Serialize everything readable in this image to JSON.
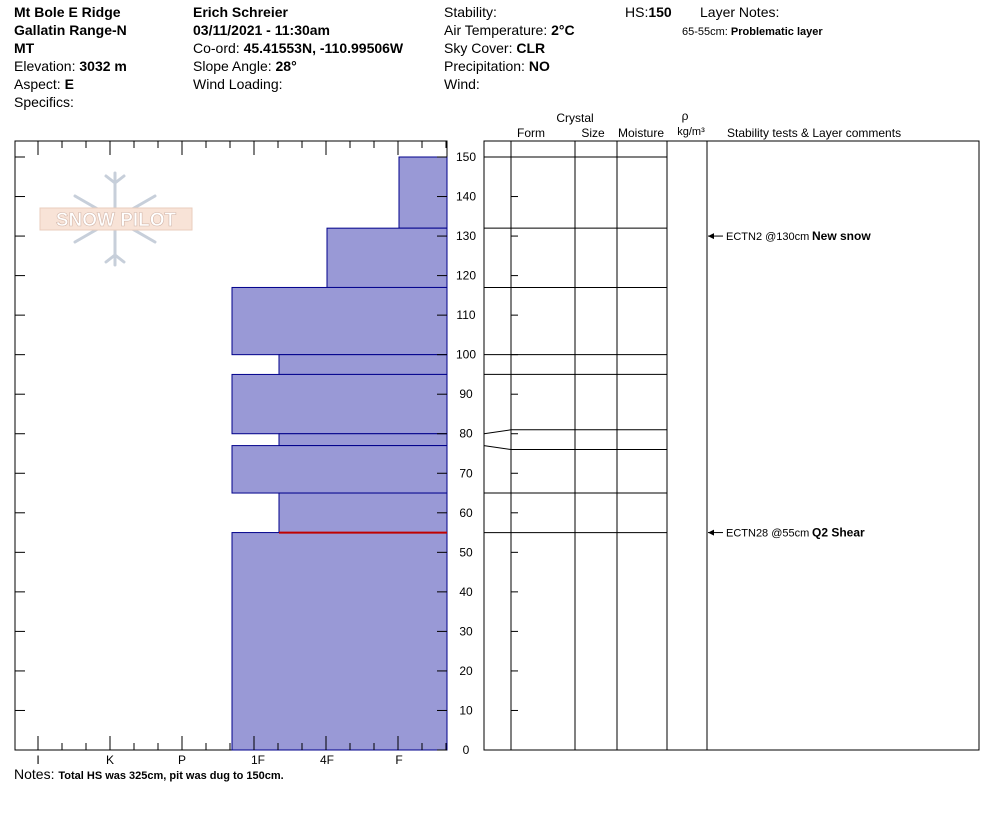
{
  "header": {
    "location": "Mt Bole E Ridge",
    "range": "Gallatin Range-N",
    "state": "MT",
    "elevation_label": "Elevation:",
    "elevation_value": "3032 m",
    "aspect_label": "Aspect:",
    "aspect_value": "E",
    "specifics_label": "Specifics:",
    "observer": "Erich  Schreier",
    "datetime": "03/11/2021 - 11:30am",
    "coord_label": "Co-ord:",
    "coord_value": "45.41553N, -110.99506W",
    "slope_label": "Slope Angle:",
    "slope_value": "28°",
    "wind_loading_label": "Wind Loading:",
    "stability_label": "Stability:",
    "air_temp_label": "Air Temperature:",
    "air_temp_value": "2°C",
    "sky_label": "Sky Cover:",
    "sky_value": "CLR",
    "precip_label": "Precipitation:",
    "precip_value": "NO",
    "wind_label": "Wind:",
    "hs_label": "HS:",
    "hs_value": "150",
    "layer_notes_label": "Layer Notes:",
    "layer_note_range": "65-55cm:",
    "layer_note_text": "Problematic layer"
  },
  "logo": {
    "text": "SNOW PILOT"
  },
  "notes": {
    "label": "Notes:",
    "text": "Total HS was 325cm, pit was dug to 150cm."
  },
  "columns": {
    "crystal": "Crystal",
    "form": "Form",
    "size": "Size",
    "moisture": "Moisture",
    "rho": "ρ",
    "density_unit": "kg/m³",
    "comments": "Stability tests & Layer comments"
  },
  "colors": {
    "hardness_fill": "#9999d6",
    "hardness_edge": "#00008b",
    "weak_layer": "#c00000"
  },
  "chart_data": {
    "type": "bar",
    "orientation": "horizontal",
    "x_categories": [
      "I",
      "K",
      "P",
      "1F",
      "4F",
      "F"
    ],
    "y_ticks": [
      0,
      10,
      20,
      30,
      40,
      50,
      60,
      70,
      80,
      90,
      100,
      110,
      120,
      130,
      140,
      150
    ],
    "ylim": [
      0,
      150
    ],
    "layers": [
      {
        "bottom": 132,
        "top": 150,
        "hardness": "F"
      },
      {
        "bottom": 117,
        "top": 132,
        "hardness": "4F"
      },
      {
        "bottom": 100,
        "top": 117,
        "hardness": "1F"
      },
      {
        "bottom": 95,
        "top": 100,
        "hardness": "1F-"
      },
      {
        "bottom": 80,
        "top": 95,
        "hardness": "1F"
      },
      {
        "bottom": 77,
        "top": 80,
        "hardness": "1F-"
      },
      {
        "bottom": 65,
        "top": 77,
        "hardness": "1F"
      },
      {
        "bottom": 55,
        "top": 65,
        "hardness": "1F-"
      },
      {
        "bottom": 0,
        "top": 55,
        "hardness": "1F"
      }
    ],
    "layer_boundaries": [
      150,
      132,
      117,
      100,
      95,
      81,
      76,
      65,
      55
    ],
    "weak_layer_at": 55,
    "tests": [
      {
        "depth": 130,
        "test": "ECTN2 @130cm",
        "comment": "New snow"
      },
      {
        "depth": 55,
        "test": "ECTN28 @55cm",
        "comment": "Q2 Shear"
      }
    ]
  }
}
